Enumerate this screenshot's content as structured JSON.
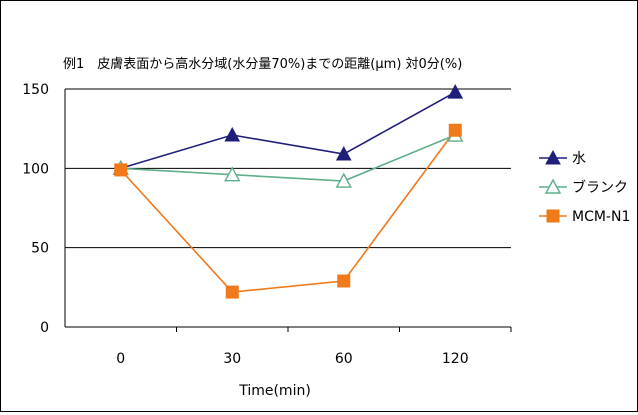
{
  "chart_data": {
    "type": "line",
    "title": "例1　皮膚表面から高水分域(水分量70%)までの距離(μm)  対0分(%)",
    "xlabel": "Time(min)",
    "ylabel": "",
    "categories": [
      "0",
      "30",
      "60",
      "120"
    ],
    "y_ticks": [
      "0",
      "50",
      "100",
      "150"
    ],
    "ylim": [
      0,
      150
    ],
    "grid": "horizontal major at 50, 100, 150",
    "legend_position": "right",
    "series": [
      {
        "name": "水",
        "values": [
          100,
          121,
          109,
          148
        ],
        "color": "#1f1f7a",
        "marker": "filled-triangle"
      },
      {
        "name": "ブランク",
        "values": [
          100,
          96,
          92,
          121
        ],
        "color": "#5fae8a",
        "marker": "open-triangle"
      },
      {
        "name": "MCM-N1",
        "values": [
          99,
          22,
          29,
          124
        ],
        "color": "#f07a1a",
        "marker": "filled-square"
      }
    ]
  }
}
